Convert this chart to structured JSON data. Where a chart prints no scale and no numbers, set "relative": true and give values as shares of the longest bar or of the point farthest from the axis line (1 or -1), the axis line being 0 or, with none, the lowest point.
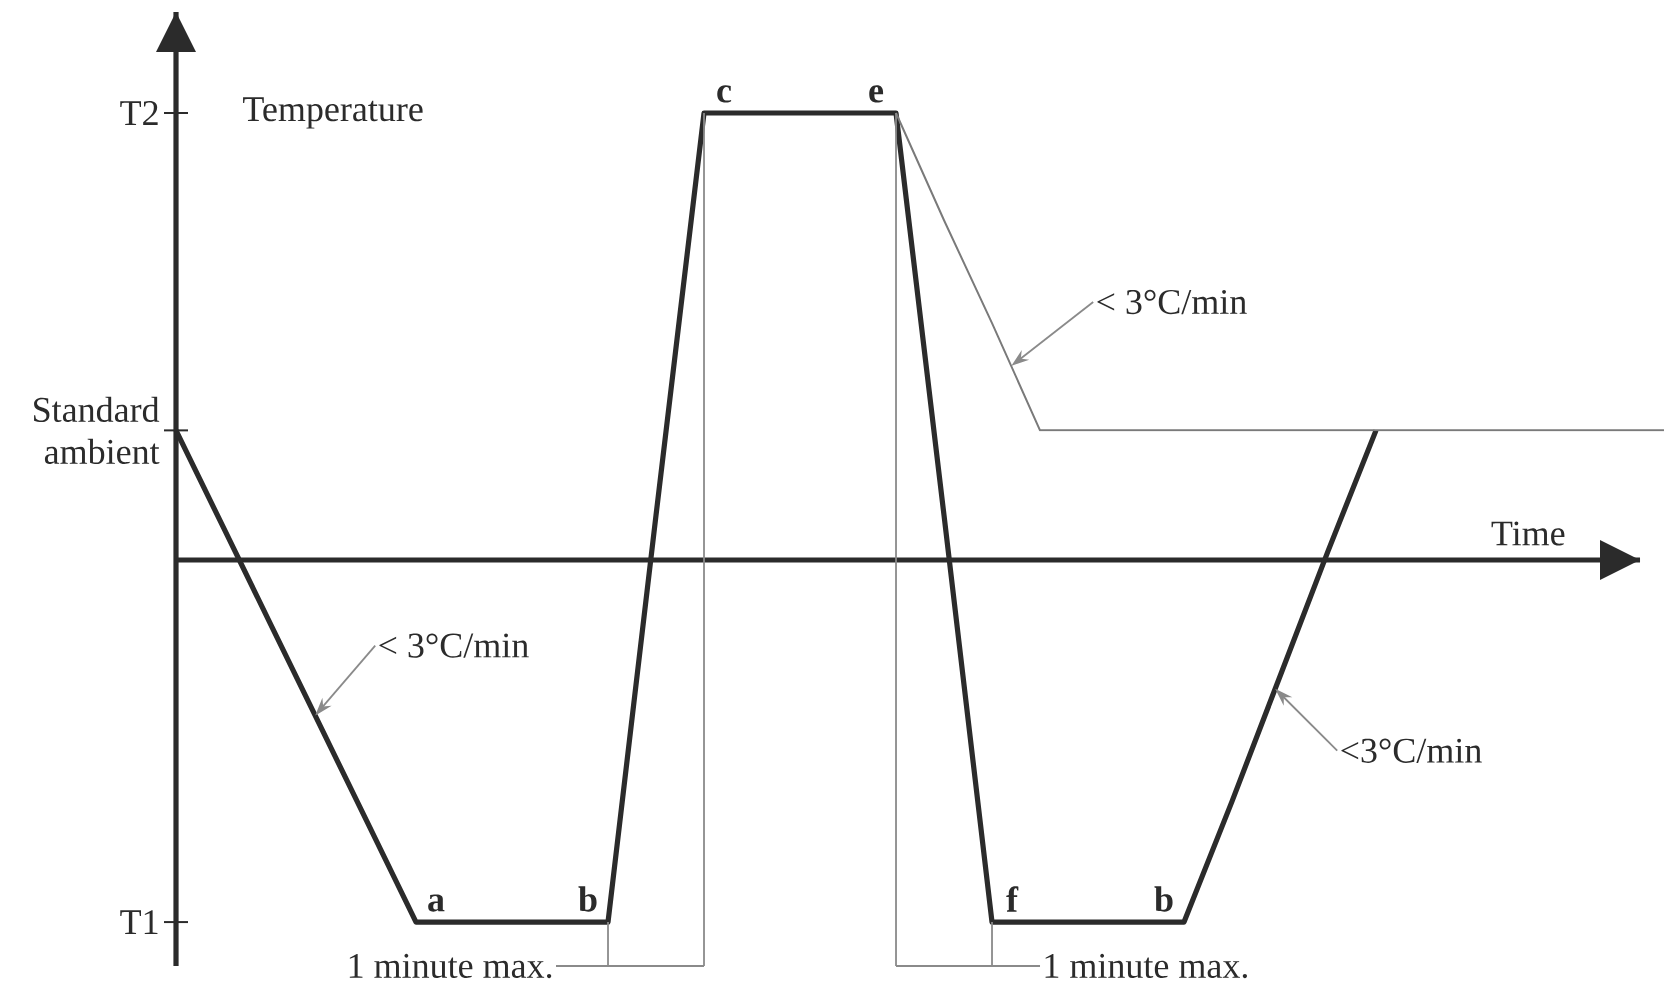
{
  "chart_data": {
    "type": "line",
    "relative": true,
    "xlabel": "Time",
    "ylabel": "Temperature",
    "categories": [
      null,
      null,
      null,
      null,
      null,
      null,
      null,
      null,
      null,
      null,
      null,
      null,
      null,
      null,
      null,
      null,
      null,
      null,
      null,
      null,
      null,
      null,
      null,
      null,
      null,
      null,
      null,
      null,
      null,
      null,
      null,
      null
    ],
    "series": [
      {
        "color": "#2b2b2b",
        "values": [
          0.29,
          0.07,
          -0.15,
          -0.37,
          -0.59,
          -0.81,
          -0.81,
          -0.81,
          -0.81,
          -0.81,
          0.1,
          1,
          1,
          1,
          1,
          1,
          0.1,
          -0.81,
          -0.81,
          -0.81,
          -0.81,
          -0.81,
          -0.54,
          -0.26,
          0.02,
          0.29,
          null,
          null,
          null,
          null,
          null,
          null
        ]
      },
      {
        "color": "#7a7a7a",
        "values": [
          null,
          null,
          null,
          null,
          null,
          null,
          null,
          null,
          null,
          null,
          null,
          null,
          null,
          null,
          null,
          1,
          0.76,
          0.53,
          0.29,
          0.29,
          0.29,
          0.29,
          0.29,
          0.29,
          0.29,
          0.29,
          0.29,
          0.29,
          0.29,
          0.29,
          0.29,
          0.29
        ]
      }
    ],
    "annotations": [
      "T2",
      "Standard ambient",
      "T1",
      "a",
      "b",
      "c",
      "e",
      "f",
      "b",
      "< 3°C/min",
      "< 3°C/min",
      "<3°C/min",
      "1 minute max.",
      "1 minute max."
    ]
  }
}
